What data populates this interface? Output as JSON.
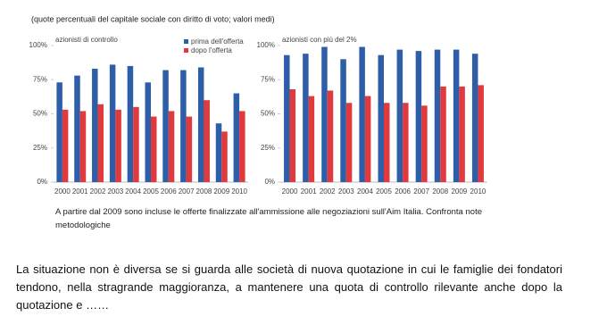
{
  "header": "(quote percentuali del capitale sociale con diritto di voto; valori medi)",
  "chart_data": [
    {
      "type": "bar",
      "title": "azionisti di controllo",
      "categories": [
        "2000",
        "2001",
        "2002",
        "2003",
        "2004",
        "2005",
        "2006",
        "2007",
        "2008",
        "2009",
        "2010"
      ],
      "series": [
        {
          "name": "prima dell'offerta",
          "color": "#2e5ea8",
          "values": [
            73,
            78,
            83,
            86,
            85,
            73,
            82,
            82,
            84,
            43,
            65
          ]
        },
        {
          "name": "dopo l'offerta",
          "color": "#e0393e",
          "values": [
            53,
            52,
            57,
            53,
            55,
            48,
            52,
            48,
            60,
            37,
            52
          ]
        }
      ],
      "ylim": [
        0,
        100
      ],
      "yticks": [
        {
          "value": 0,
          "label": "0%"
        },
        {
          "value": 25,
          "label": "25%"
        },
        {
          "value": 50,
          "label": "50%"
        },
        {
          "value": 75,
          "label": "75%"
        },
        {
          "value": 100,
          "label": "100%"
        }
      ],
      "legend": "top-right"
    },
    {
      "type": "bar",
      "title": "azionisti con più del 2%",
      "categories": [
        "2000",
        "2001",
        "2002",
        "2003",
        "2004",
        "2005",
        "2006",
        "2007",
        "2008",
        "2009",
        "2010"
      ],
      "series": [
        {
          "color": "#2e5ea8",
          "values": [
            93,
            94,
            99,
            90,
            99,
            93,
            97,
            96,
            97,
            97,
            94
          ]
        },
        {
          "color": "#e0393e",
          "values": [
            68,
            63,
            67,
            58,
            63,
            58,
            58,
            56,
            70,
            70,
            71
          ]
        }
      ],
      "ylim": [
        0,
        100
      ],
      "yticks": [
        {
          "value": 0,
          "label": "0%"
        },
        {
          "value": 25,
          "label": "25%"
        },
        {
          "value": 50,
          "label": "50%"
        },
        {
          "value": 75,
          "label": "75%"
        },
        {
          "value": 100,
          "label": "100%"
        }
      ]
    }
  ],
  "note": "A partire dal 2009 sono incluse le offerte finalizzate all'ammissione alle negoziazioni sull'Aim Italia. Confronta note metodologiche",
  "paragraph": "La situazione non è diversa se si guarda alle società di nuova quotazione in cui le famiglie dei fondatori tendono, nella stragrande maggioranza, a mantenere una quota di controllo rilevante anche dopo la quotazione e ……"
}
